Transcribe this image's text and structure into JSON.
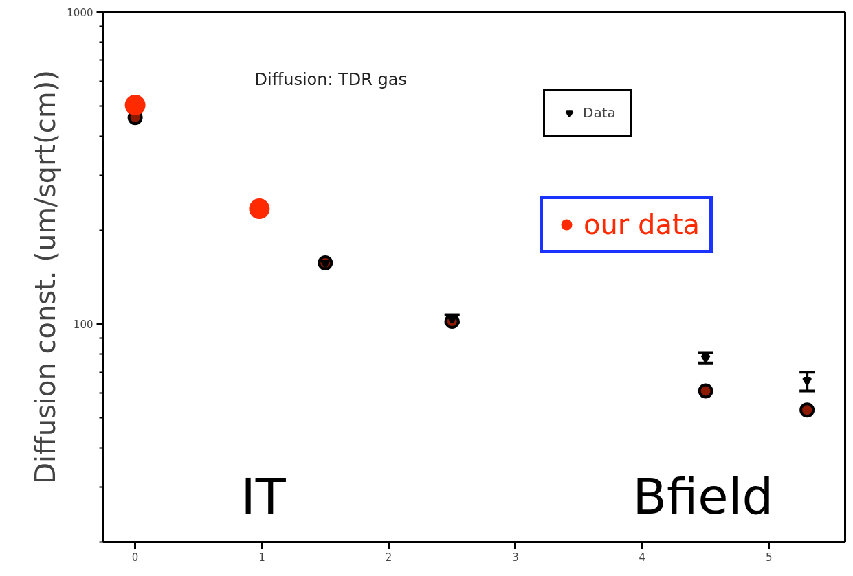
{
  "chart_data": {
    "type": "scatter",
    "ylabel": "Diffusion const. (um/sqrt(cm))",
    "annotations": [
      "Diffusion: TDR gas",
      "IT",
      "Bfield"
    ],
    "log": "y",
    "grid": false,
    "legend": "top right",
    "xlim": [
      -0.25,
      5.6
    ],
    "xticks": [
      0,
      1,
      2,
      3,
      4,
      5
    ],
    "ylim": [
      20,
      1000
    ],
    "yticks": [
      {
        "value": 20,
        "label": null
      },
      {
        "value": 30,
        "label": null
      },
      {
        "value": 40,
        "label": null
      },
      {
        "value": 50,
        "label": null
      },
      {
        "value": 60,
        "label": null
      },
      {
        "value": 70,
        "label": null
      },
      {
        "value": 80,
        "label": null
      },
      {
        "value": 90,
        "label": null
      },
      100,
      {
        "value": 200,
        "label": null
      },
      {
        "value": 300,
        "label": null
      },
      {
        "value": 400,
        "label": null
      },
      {
        "value": 500,
        "label": null
      },
      {
        "value": 600,
        "label": null
      },
      {
        "value": 700,
        "label": null
      },
      {
        "value": 800,
        "label": null
      },
      {
        "value": 900,
        "label": null
      },
      1000
    ],
    "series": [
      {
        "color": "#8b1a00",
        "marker": "circle",
        "x": [
          0,
          1.5,
          2.5,
          4.5,
          5.3
        ],
        "values": [
          459,
          157,
          102,
          61,
          53
        ]
      },
      {
        "name": "Data",
        "color": "#000000",
        "marker": "triangle",
        "x": [
          1.5,
          2.5,
          4.5,
          5.3
        ],
        "values": [
          157,
          104,
          78,
          66
        ],
        "errors": [
          null,
          [
            101,
            107
          ],
          [
            75,
            81
          ],
          [
            61,
            70
          ]
        ]
      },
      {
        "name": "our data",
        "color": "#ff2a00",
        "marker": "circle",
        "x": [
          0,
          0.98
        ],
        "values": [
          503,
          234
        ]
      }
    ]
  }
}
